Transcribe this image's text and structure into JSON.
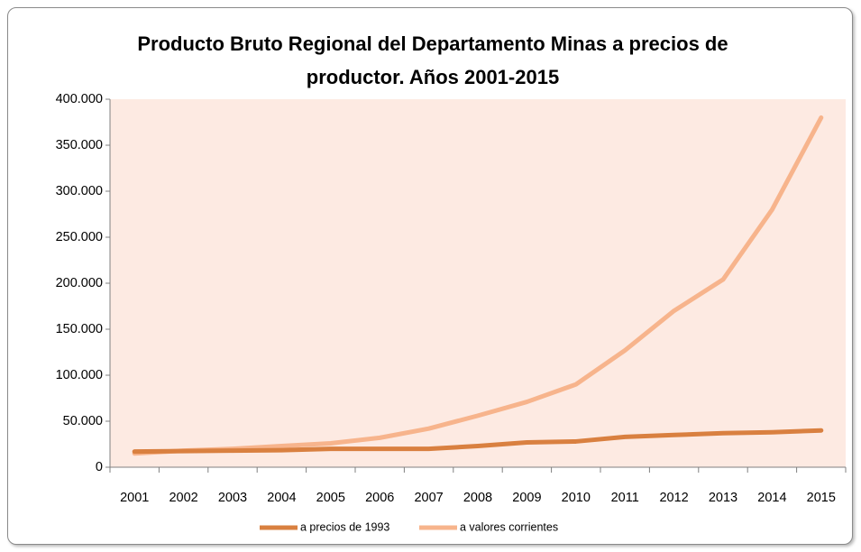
{
  "chart_data": {
    "type": "line",
    "title": "Producto Bruto Regional del Departamento Minas a precios de productor. Años 2001-2015",
    "categories": [
      "2001",
      "2002",
      "2003",
      "2004",
      "2005",
      "2006",
      "2007",
      "2008",
      "2009",
      "2010",
      "2011",
      "2012",
      "2013",
      "2014",
      "2015"
    ],
    "series": [
      {
        "name": "a precios de 1993",
        "color": "#d98040",
        "values": [
          17000,
          17500,
          18000,
          18500,
          20000,
          20000,
          20000,
          23000,
          27000,
          28000,
          33000,
          35000,
          37000,
          38000,
          40000
        ]
      },
      {
        "name": "a valores corrientes",
        "color": "#f7b48c",
        "values": [
          15000,
          18000,
          20000,
          23000,
          26000,
          32000,
          42000,
          56000,
          71000,
          90000,
          127000,
          170000,
          204000,
          280000,
          380000
        ]
      }
    ],
    "ylim": [
      0,
      400000
    ],
    "yticks": [
      0,
      {
        "value": 50000,
        "label": "50.000"
      },
      {
        "value": 100000,
        "label": "100.000"
      },
      {
        "value": 150000,
        "label": "150.000"
      },
      {
        "value": 200000,
        "label": "200.000"
      },
      {
        "value": 250000,
        "label": "250.000"
      },
      {
        "value": 300000,
        "label": "300.000"
      },
      {
        "value": 350000,
        "label": "350.000"
      },
      {
        "value": 400000,
        "label": "400.000"
      }
    ],
    "plot_background": "#fdeae2",
    "legend": "bottom"
  }
}
